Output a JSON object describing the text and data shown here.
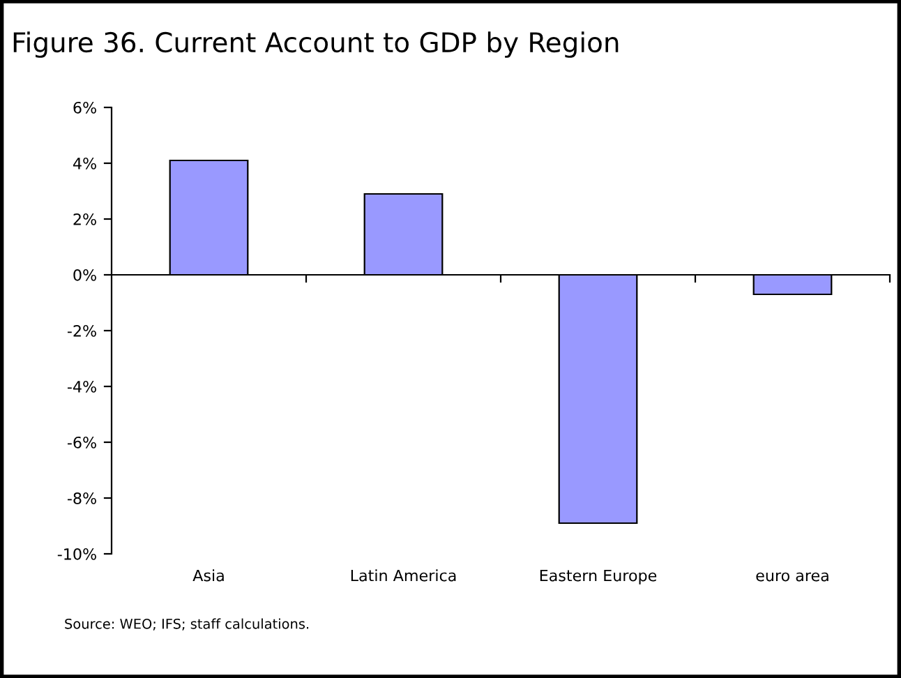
{
  "chart_data": {
    "type": "bar",
    "title": "Figure 36. Current Account to GDP by Region",
    "categories": [
      "Asia",
      "Latin America",
      "Eastern Europe",
      "euro area"
    ],
    "values": [
      4.1,
      2.9,
      -8.9,
      -0.7
    ],
    "color": "#9999ff",
    "ylim": [
      -10,
      6
    ],
    "yticks": [
      {
        "value": -10,
        "label": "-10%"
      },
      {
        "value": -8,
        "label": "-8%"
      },
      {
        "value": -6,
        "label": "-6%"
      },
      {
        "value": -4,
        "label": "-4%"
      },
      {
        "value": -2,
        "label": "-2%"
      },
      {
        "value": 0,
        "label": "0%"
      },
      {
        "value": 2,
        "label": "2%"
      },
      {
        "value": 4,
        "label": "4%"
      },
      {
        "value": 6,
        "label": "6%"
      }
    ],
    "legend": false,
    "annotations": [
      "Source: WEO; IFS; staff calculations."
    ]
  }
}
